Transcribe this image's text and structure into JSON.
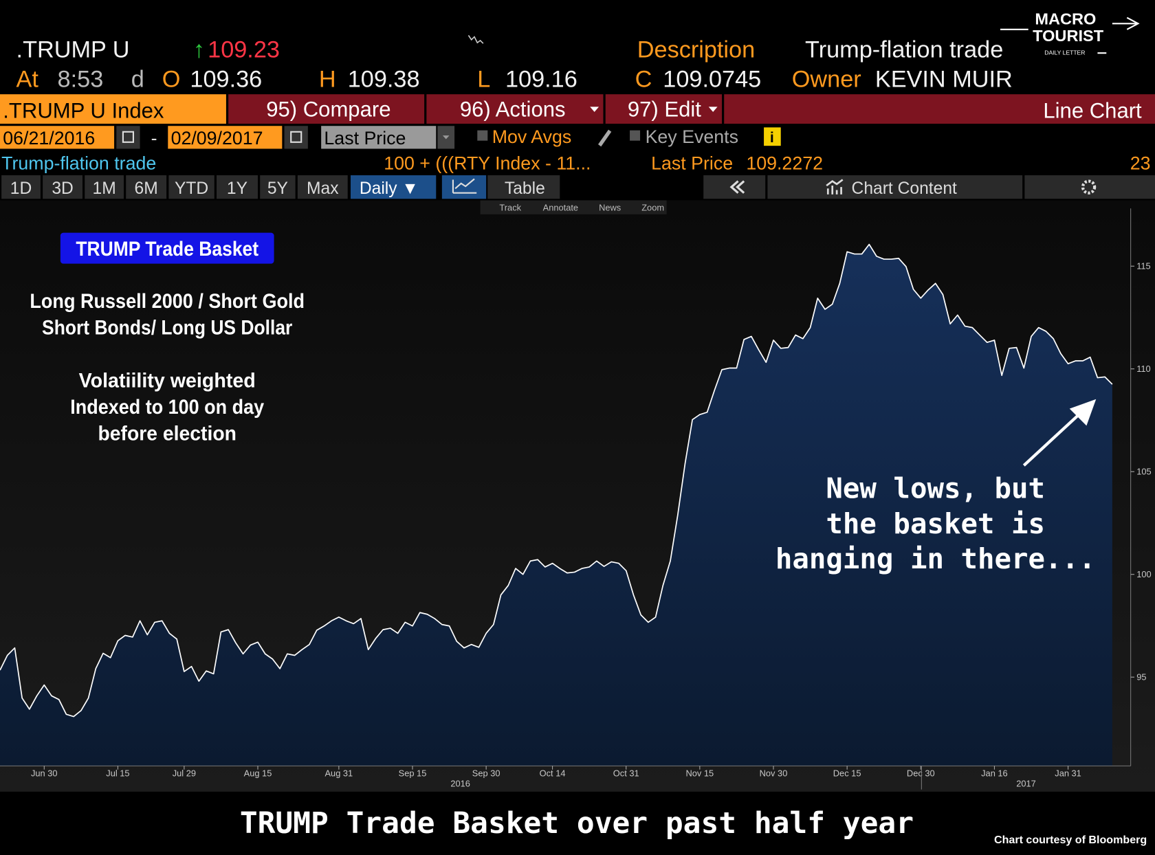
{
  "header": {
    "ticker": ".TRUMP U",
    "last": 109.23,
    "at_label": "At",
    "time": "8:53",
    "d_label": "d",
    "open_label": "O",
    "open": 109.36,
    "high_label": "H",
    "high": 109.38,
    "low_label": "L",
    "low": 109.16,
    "close_label": "C",
    "close": 109.0745,
    "description_label": "Description",
    "description": "Trump-flation trade",
    "owner_label": "Owner",
    "owner": "KEVIN MUIR"
  },
  "logo": {
    "line1": "MACRO",
    "line2": "TOURIST",
    "line3": "DAILY LETTER"
  },
  "toolbar": {
    "index": ".TRUMP U Index",
    "compare": "95) Compare",
    "actions": "96) Actions",
    "edit": "97) Edit",
    "chart_type": "Line Chart"
  },
  "date_bar": {
    "start": "06/21/2016",
    "separator": "-",
    "end": "02/09/2017",
    "field": "Last Price",
    "mov_avgs": "Mov Avgs",
    "key_events": "Key Events",
    "info": "i"
  },
  "legend_bar": {
    "name": "Trump-flation trade",
    "formula": "100 + (((RTY Index - 11...",
    "last_price_label": "Last Price",
    "last_price": 109.2272,
    "count": 23
  },
  "period_tabs": [
    "1D",
    "3D",
    "1M",
    "6M",
    "YTD",
    "1Y",
    "5Y",
    "Max"
  ],
  "frequency": "Daily ▼",
  "table_tab": "Table",
  "chart_content": "Chart Content",
  "chart_tools": [
    "Track",
    "Annotate",
    "News",
    "Zoom"
  ],
  "chart_data": {
    "type": "area",
    "title": "TRUMP Trade Basket over past half year",
    "source": "Chart courtesy of Bloomberg",
    "box_label": "TRUMP Trade Basket",
    "notes": [
      "Long Russell 2000 / Short Gold",
      "Short Bonds/ Long US Dollar",
      "Volatiility weighted",
      "Indexed to 100 on day",
      "before election"
    ],
    "callout": [
      "New lows, but",
      "the basket is",
      "hanging in there..."
    ],
    "years": [
      "2016",
      "2017"
    ],
    "color": "#ffffff",
    "area_color": "#16305a",
    "ylim": [
      90.68,
      117.81
    ],
    "yticks": [
      95,
      100,
      105,
      110,
      115
    ],
    "categories": [
      null,
      null,
      null,
      null,
      null,
      null,
      "Jun 30",
      null,
      null,
      null,
      null,
      null,
      null,
      null,
      null,
      null,
      "Jul 15",
      null,
      null,
      null,
      null,
      null,
      null,
      null,
      null,
      "Jul 29",
      null,
      null,
      null,
      null,
      null,
      null,
      null,
      null,
      null,
      "Aug 15",
      null,
      null,
      null,
      null,
      null,
      null,
      null,
      null,
      null,
      null,
      "Aug 31",
      null,
      null,
      null,
      null,
      null,
      null,
      null,
      null,
      null,
      "Sep 15",
      null,
      null,
      null,
      null,
      null,
      null,
      null,
      null,
      null,
      "Sep 30",
      null,
      null,
      null,
      null,
      null,
      null,
      null,
      null,
      "Oct 14",
      null,
      null,
      null,
      null,
      null,
      null,
      null,
      null,
      null,
      "Oct 31",
      null,
      null,
      null,
      null,
      null,
      null,
      null,
      null,
      null,
      "Nov 15",
      null,
      null,
      null,
      null,
      null,
      null,
      null,
      null,
      null,
      "Nov 30",
      null,
      null,
      null,
      null,
      null,
      null,
      null,
      null,
      null,
      "Dec 15",
      null,
      null,
      null,
      null,
      null,
      null,
      null,
      null,
      null,
      "Dec 30",
      null,
      null,
      null,
      null,
      null,
      null,
      null,
      null,
      null,
      "Jan 16",
      null,
      null,
      null,
      null,
      null,
      null,
      null,
      null,
      null,
      "Jan 31",
      null,
      null,
      null,
      null,
      null,
      null
    ],
    "values": [
      95.34,
      96.06,
      96.42,
      93.98,
      93.44,
      94.09,
      94.62,
      94.09,
      93.91,
      93.19,
      93.08,
      93.37,
      93.98,
      95.41,
      96.16,
      95.95,
      96.77,
      97.03,
      96.95,
      97.74,
      97.06,
      97.67,
      97.74,
      97.13,
      96.85,
      95.27,
      95.52,
      94.8,
      95.3,
      95.16,
      97.2,
      97.31,
      96.67,
      96.13,
      96.56,
      96.7,
      96.13,
      95.88,
      95.41,
      96.13,
      96.06,
      96.34,
      96.59,
      97.28,
      97.49,
      97.74,
      97.92,
      97.74,
      97.6,
      97.85,
      96.34,
      96.88,
      97.31,
      97.38,
      97.13,
      97.67,
      97.49,
      98.14,
      98.06,
      97.85,
      97.56,
      97.49,
      96.74,
      96.42,
      96.59,
      96.45,
      97.13,
      97.56,
      99.0,
      99.46,
      100.29,
      100.0,
      100.65,
      100.72,
      100.36,
      100.54,
      100.29,
      100.07,
      100.11,
      100.29,
      100.36,
      100.65,
      100.39,
      100.61,
      100.54,
      100.18,
      99.0,
      98.03,
      97.67,
      97.92,
      99.46,
      100.65,
      102.87,
      105.38,
      107.53,
      107.78,
      107.89,
      108.96,
      109.96,
      110.04,
      110.04,
      111.43,
      111.58,
      110.93,
      110.32,
      111.4,
      111.0,
      111.04,
      111.65,
      111.47,
      112.01,
      113.44,
      112.9,
      113.15,
      114.16,
      115.7,
      115.59,
      115.59,
      116.06,
      115.48,
      115.34,
      115.34,
      115.38,
      114.98,
      113.87,
      113.44,
      113.84,
      114.16,
      113.62,
      112.19,
      112.62,
      112.08,
      112.01,
      111.65,
      111.29,
      111.4,
      109.68,
      111.0,
      111.04,
      110.04,
      111.58,
      112.01,
      111.83,
      111.47,
      110.75,
      110.25,
      110.39,
      110.39,
      110.57,
      109.57,
      109.61,
      109.25
    ]
  }
}
